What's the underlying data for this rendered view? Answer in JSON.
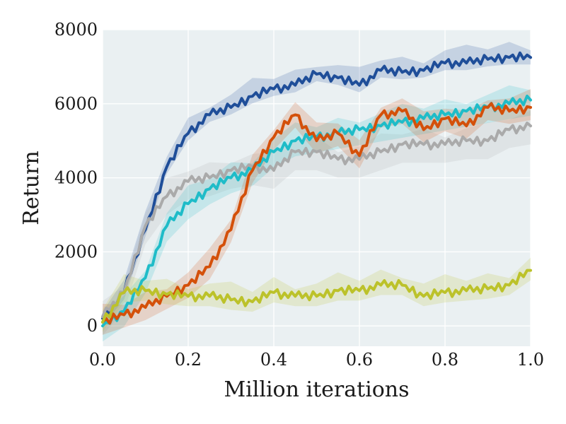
{
  "chart_data": {
    "type": "line",
    "xlabel": "Million iterations",
    "ylabel": "Return",
    "xlim": [
      0.0,
      1.0
    ],
    "ylim": [
      -550,
      8000
    ],
    "x_ticks": [
      "0.0",
      "0.2",
      "0.4",
      "0.6",
      "0.8",
      "1.0"
    ],
    "y_ticks": [
      "0",
      "2000",
      "4000",
      "6000",
      "8000"
    ],
    "grid": true,
    "background": "#eaf0f2",
    "series": [
      {
        "color": "#1f4e99",
        "x": [
          0.0,
          0.05,
          0.1,
          0.15,
          0.2,
          0.25,
          0.3,
          0.35,
          0.4,
          0.45,
          0.5,
          0.55,
          0.6,
          0.65,
          0.7,
          0.75,
          0.8,
          0.85,
          0.9,
          0.95,
          1.0
        ],
        "y": [
          200,
          900,
          2600,
          4300,
          5200,
          5700,
          5900,
          6200,
          6400,
          6500,
          6800,
          6700,
          6500,
          6900,
          6850,
          6900,
          7100,
          7100,
          7200,
          7250,
          7250
        ]
      },
      {
        "color": "#aaaaaa",
        "x": [
          0.0,
          0.05,
          0.1,
          0.15,
          0.2,
          0.25,
          0.3,
          0.35,
          0.4,
          0.45,
          0.5,
          0.55,
          0.6,
          0.65,
          0.7,
          0.75,
          0.8,
          0.85,
          0.9,
          0.95,
          1.0
        ],
        "y": [
          250,
          900,
          2700,
          3500,
          3900,
          4000,
          4200,
          4300,
          4200,
          4700,
          4700,
          4500,
          4500,
          4700,
          4900,
          4900,
          4900,
          5000,
          5000,
          5300,
          5400
        ]
      },
      {
        "color": "#1fbcc8",
        "x": [
          0.0,
          0.05,
          0.1,
          0.15,
          0.2,
          0.25,
          0.3,
          0.35,
          0.4,
          0.45,
          0.5,
          0.55,
          0.6,
          0.65,
          0.7,
          0.75,
          0.8,
          0.85,
          0.9,
          0.95,
          1.0
        ],
        "y": [
          0,
          400,
          1300,
          2700,
          3300,
          3700,
          4000,
          4200,
          4700,
          5000,
          5100,
          5200,
          5300,
          5400,
          5500,
          5600,
          5700,
          5800,
          5900,
          6000,
          6100
        ]
      },
      {
        "color": "#d4500a",
        "x": [
          0.0,
          0.05,
          0.1,
          0.15,
          0.2,
          0.25,
          0.3,
          0.35,
          0.4,
          0.45,
          0.5,
          0.55,
          0.6,
          0.65,
          0.7,
          0.75,
          0.8,
          0.85,
          0.9,
          0.95,
          1.0
        ],
        "y": [
          100,
          300,
          500,
          800,
          1100,
          1600,
          2600,
          4200,
          5100,
          5700,
          5000,
          5200,
          4600,
          5700,
          5800,
          5300,
          5600,
          5400,
          5900,
          5800,
          5900
        ]
      },
      {
        "color": "#bcc22a",
        "x": [
          0.0,
          0.05,
          0.1,
          0.15,
          0.2,
          0.25,
          0.3,
          0.35,
          0.4,
          0.45,
          0.5,
          0.55,
          0.6,
          0.65,
          0.7,
          0.75,
          0.8,
          0.85,
          0.9,
          0.95,
          1.0
        ],
        "y": [
          100,
          900,
          950,
          850,
          800,
          800,
          700,
          650,
          900,
          800,
          800,
          950,
          950,
          1100,
          1100,
          800,
          900,
          950,
          1000,
          1100,
          1500
        ]
      }
    ]
  }
}
